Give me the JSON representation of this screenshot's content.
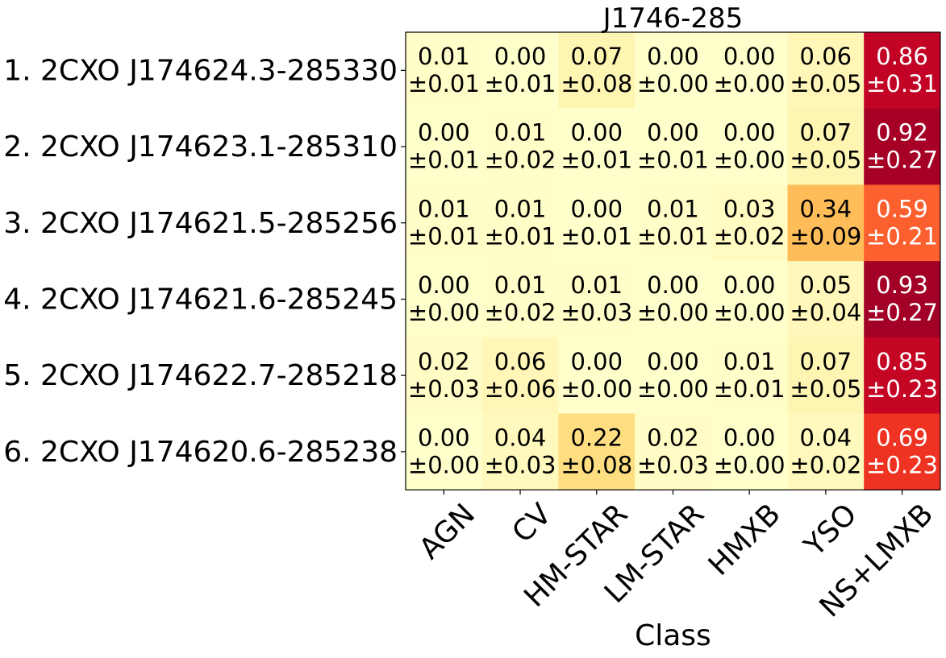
{
  "chart_data": {
    "type": "heatmap",
    "title": "J1746-285",
    "xlabel": "Class",
    "ylabel": "",
    "colormap": "YlOrRd",
    "value_range": [
      0,
      1
    ],
    "columns": [
      "AGN",
      "CV",
      "HM-STAR",
      "LM-STAR",
      "HMXB",
      "YSO",
      "NS+LMXB"
    ],
    "rows": [
      "1. 2CXO J174624.3-285330",
      "2. 2CXO J174623.1-285310",
      "3. 2CXO J174621.5-285256",
      "4. 2CXO J174621.6-285245",
      "5. 2CXO J174622.7-285218",
      "6. 2CXO J174620.6-285238"
    ],
    "values": [
      [
        0.01,
        0.0,
        0.07,
        0.0,
        0.0,
        0.06,
        0.86
      ],
      [
        0.0,
        0.01,
        0.0,
        0.0,
        0.0,
        0.07,
        0.92
      ],
      [
        0.01,
        0.01,
        0.0,
        0.01,
        0.03,
        0.34,
        0.59
      ],
      [
        0.0,
        0.01,
        0.01,
        0.0,
        0.0,
        0.05,
        0.93
      ],
      [
        0.02,
        0.06,
        0.0,
        0.0,
        0.01,
        0.07,
        0.85
      ],
      [
        0.0,
        0.04,
        0.22,
        0.02,
        0.0,
        0.04,
        0.69
      ]
    ],
    "errors": [
      [
        0.01,
        0.01,
        0.08,
        0.0,
        0.0,
        0.05,
        0.31
      ],
      [
        0.01,
        0.02,
        0.01,
        0.01,
        0.0,
        0.05,
        0.27
      ],
      [
        0.01,
        0.01,
        0.01,
        0.01,
        0.02,
        0.09,
        0.21
      ],
      [
        0.0,
        0.02,
        0.03,
        0.0,
        0.0,
        0.04,
        0.27
      ],
      [
        0.03,
        0.06,
        0.0,
        0.0,
        0.01,
        0.05,
        0.23
      ],
      [
        0.0,
        0.03,
        0.08,
        0.03,
        0.0,
        0.02,
        0.23
      ]
    ],
    "value_labels": [
      [
        "0.01",
        "0.00",
        "0.07",
        "0.00",
        "0.00",
        "0.06",
        "0.86"
      ],
      [
        "0.00",
        "0.01",
        "0.00",
        "0.00",
        "0.00",
        "0.07",
        "0.92"
      ],
      [
        "0.01",
        "0.01",
        "0.00",
        "0.01",
        "0.03",
        "0.34",
        "0.59"
      ],
      [
        "0.00",
        "0.01",
        "0.01",
        "0.00",
        "0.00",
        "0.05",
        "0.93"
      ],
      [
        "0.02",
        "0.06",
        "0.00",
        "0.00",
        "0.01",
        "0.07",
        "0.85"
      ],
      [
        "0.00",
        "0.04",
        "0.22",
        "0.02",
        "0.00",
        "0.04",
        "0.69"
      ]
    ],
    "error_labels": [
      [
        "±0.01",
        "±0.01",
        "±0.08",
        "±0.00",
        "±0.00",
        "±0.05",
        "±0.31"
      ],
      [
        "±0.01",
        "±0.02",
        "±0.01",
        "±0.01",
        "±0.00",
        "±0.05",
        "±0.27"
      ],
      [
        "±0.01",
        "±0.01",
        "±0.01",
        "±0.01",
        "±0.02",
        "±0.09",
        "±0.21"
      ],
      [
        "±0.00",
        "±0.02",
        "±0.03",
        "±0.00",
        "±0.00",
        "±0.04",
        "±0.27"
      ],
      [
        "±0.03",
        "±0.06",
        "±0.00",
        "±0.00",
        "±0.01",
        "±0.05",
        "±0.23"
      ],
      [
        "±0.00",
        "±0.03",
        "±0.08",
        "±0.03",
        "±0.00",
        "±0.02",
        "±0.23"
      ]
    ]
  }
}
